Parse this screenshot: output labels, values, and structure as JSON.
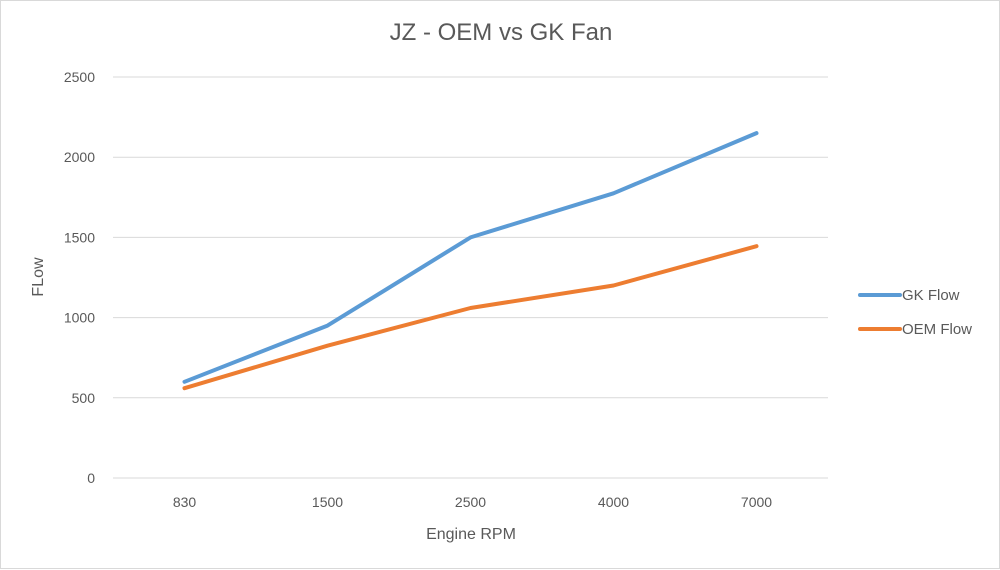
{
  "chart_data": {
    "type": "line",
    "title": "JZ - OEM vs GK Fan",
    "xlabel": "Engine RPM",
    "ylabel": "FLow",
    "categories": [
      "830",
      "1500",
      "2500",
      "4000",
      "7000"
    ],
    "series": [
      {
        "name": "GK Flow",
        "color": "#5b9bd5",
        "values": [
          600,
          950,
          1500,
          1775,
          2150
        ]
      },
      {
        "name": "OEM Flow",
        "color": "#ed7d31",
        "values": [
          560,
          825,
          1060,
          1200,
          1445
        ]
      }
    ],
    "ylim": [
      0,
      2500
    ],
    "yticks": [
      0,
      500,
      1000,
      1500,
      2000,
      2500
    ],
    "grid": true,
    "legend_position": "right"
  }
}
